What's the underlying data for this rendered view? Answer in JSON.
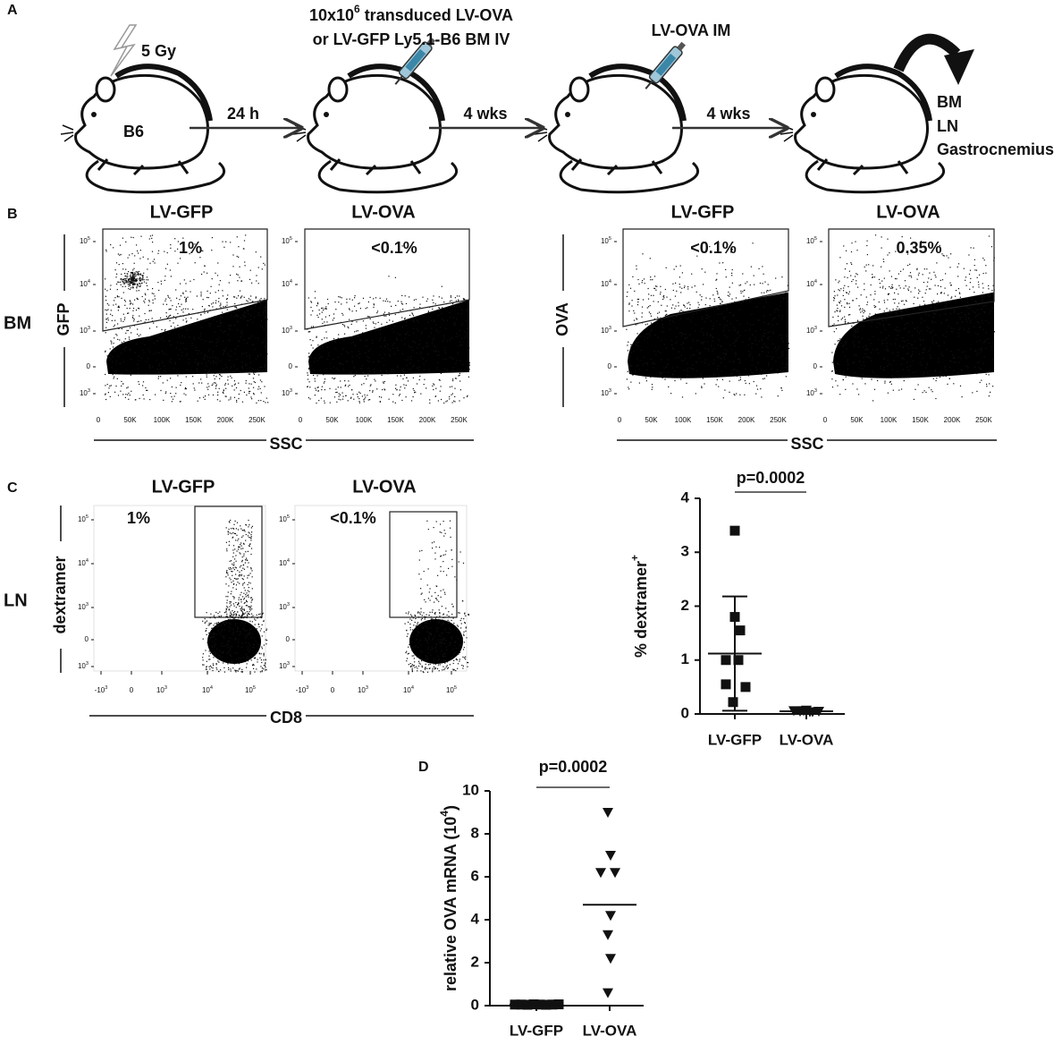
{
  "panel_labels": [
    "A",
    "B",
    "C",
    "D"
  ],
  "panel_a": {
    "dose": "5 Gy",
    "strain": "B6",
    "injection_a": "10x10",
    "injection_sup": "6",
    "injection_b": " transduced LV-OVA",
    "injection_line2": "or LV-GFP Ly5.1-B6 BM IV",
    "boost": "LV-OVA IM",
    "steps": [
      "24 h",
      "4 wks",
      "4 wks"
    ],
    "organs": [
      "BM",
      "LN",
      "Gastrocnemius"
    ]
  },
  "panel_b": {
    "row_label": "BM",
    "plots": [
      {
        "title": "LV-GFP",
        "gate": "1%"
      },
      {
        "title": "LV-OVA",
        "gate": "<0.1%"
      },
      {
        "title": "LV-GFP",
        "gate": "<0.1%"
      },
      {
        "title": "LV-OVA",
        "gate": "0.35%"
      }
    ],
    "y_labels": [
      "GFP",
      "OVA"
    ],
    "x_label": "SSC",
    "y_ticks": [
      {
        "text": "10",
        "sup": "5"
      },
      {
        "text": "10",
        "sup": "4"
      },
      {
        "text": "10",
        "sup": "3"
      },
      {
        "text": "0"
      },
      {
        "text": "10",
        "sup": "3"
      }
    ],
    "x_ticks": [
      "0",
      "50K",
      "100K",
      "150K",
      "200K",
      "250K"
    ]
  },
  "panel_c": {
    "row_label": "LN",
    "plots": [
      {
        "title": "LV-GFP",
        "gate": "1%"
      },
      {
        "title": "LV-OVA",
        "gate": "<0.1%"
      }
    ],
    "y_label": "dextramer",
    "x_label": "CD8",
    "y_ticks": [
      {
        "text": "10",
        "sup": "5"
      },
      {
        "text": "10",
        "sup": "4"
      },
      {
        "text": "10",
        "sup": "3"
      },
      {
        "text": "0"
      },
      {
        "text": "10",
        "sup": "3"
      }
    ],
    "x_ticks": [
      {
        "text": "-10",
        "sup": "3"
      },
      {
        "text": "0"
      },
      {
        "text": "10",
        "sup": "3"
      },
      {
        "text": "10",
        "sup": "4"
      },
      {
        "text": "10",
        "sup": "5"
      }
    ]
  },
  "chart_data": [
    {
      "type": "scatter",
      "y_label": "% dextramer",
      "y_label_sup": "+",
      "annotation": "p=0.0002",
      "categories": [
        "LV-GFP",
        "LV-OVA"
      ],
      "groups": [
        {
          "marker": "square",
          "values": [
            3.4,
            1.8,
            1.55,
            1.0,
            1.0,
            0.55,
            0.5,
            0.22
          ],
          "mean": 1.12,
          "sd": 1.06
        },
        {
          "marker": "triangle-down",
          "values": [
            0.06,
            0.05,
            0.07,
            0.04,
            0.05,
            0.06,
            0.04
          ],
          "mean": 0.05,
          "sd": 0.02
        }
      ],
      "color": "#111111",
      "ylim": [
        0,
        4
      ],
      "yticks": [
        0,
        1,
        2,
        3,
        4
      ]
    },
    {
      "type": "scatter",
      "y_label": "relative OVA mRNA (10",
      "y_label_sup": "4",
      "y_label_end": ")",
      "annotation": "p=0.0002",
      "categories": [
        "LV-GFP",
        "LV-OVA"
      ],
      "groups": [
        {
          "marker": "square",
          "values": [
            0.05,
            0.05,
            0.04,
            0.06,
            0.05,
            0.04,
            0.05,
            0.06
          ],
          "mean": 0.05
        },
        {
          "marker": "triangle-down",
          "values": [
            9.0,
            7.0,
            6.2,
            6.2,
            4.2,
            3.3,
            2.2,
            0.6
          ],
          "mean": 4.7
        }
      ],
      "color": "#111111",
      "ylim": [
        0,
        10
      ],
      "yticks": [
        0,
        2,
        4,
        6,
        8,
        10
      ]
    }
  ]
}
